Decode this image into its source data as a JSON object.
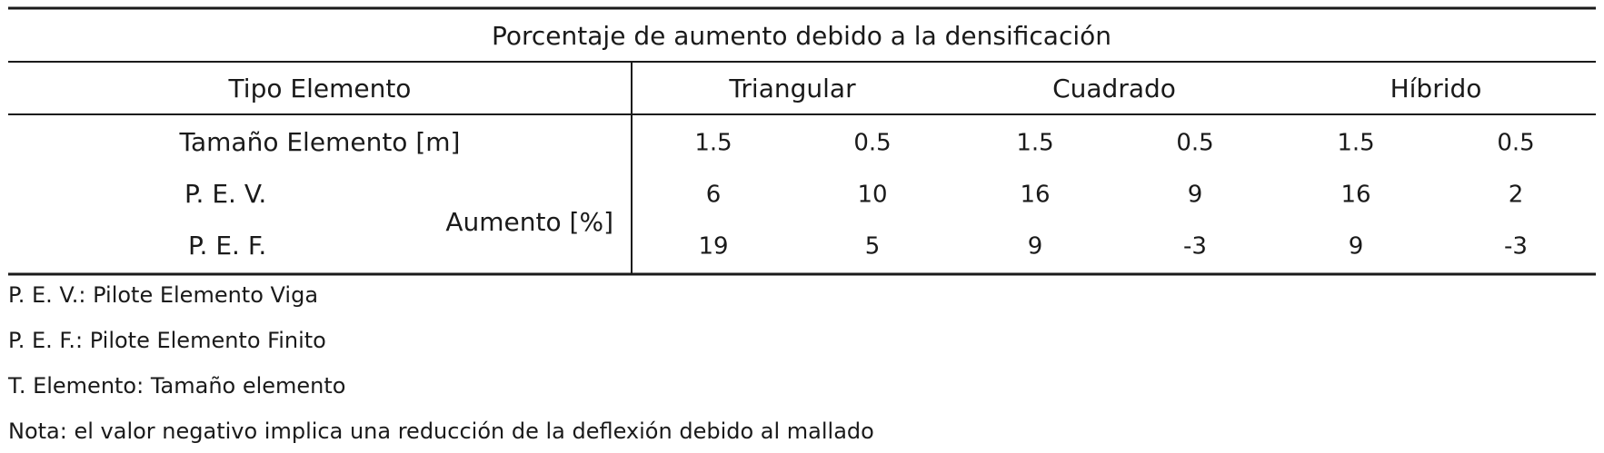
{
  "table": {
    "title": "Porcentaje de aumento debido a la densificación",
    "header": [
      "Tipo Elemento",
      "Triangular",
      "Cuadrado",
      "Híbrido"
    ],
    "size_row": {
      "label": "Tamaño Elemento [m]",
      "values": [
        1.5,
        0.5,
        1.5,
        0.5,
        1.5,
        0.5
      ]
    },
    "metric_label": "Aumento [%]",
    "rows": [
      {
        "label": "P. E. V.",
        "values": [
          6,
          10,
          16,
          9,
          16,
          2
        ]
      },
      {
        "label": "P. E. F.",
        "values": [
          19,
          5,
          9,
          -3,
          9,
          -3
        ]
      }
    ]
  },
  "notes": [
    "P. E. V.: Pilote Elemento Viga",
    "P. E. F.: Pilote Elemento Finito",
    "T. Elemento: Tamaño elemento",
    "Nota: el valor negativo implica una reducción de la deflexión debido al mallado"
  ]
}
